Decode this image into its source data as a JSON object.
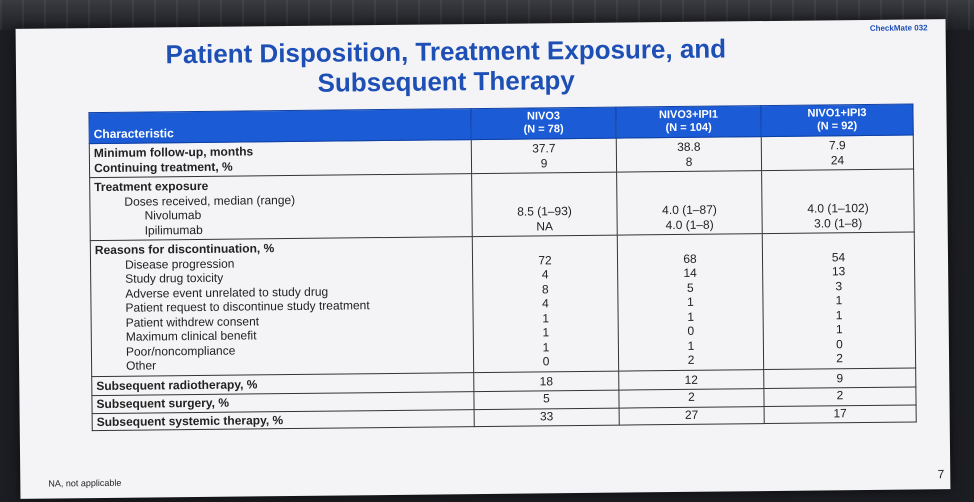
{
  "tag": "CheckMate 032",
  "title": "Patient Disposition, Treatment Exposure, and Subsequent Therapy",
  "header": {
    "characteristic": "Characteristic",
    "col1": "NIVO3",
    "col1_n": "(N = 78)",
    "col2": "NIVO3+IPI1",
    "col2_n": "(N = 104)",
    "col3": "NIVO1+IPI3",
    "col3_n": "(N = 92)"
  },
  "followup": {
    "min_label": "Minimum follow-up, months",
    "min": [
      "37.7",
      "38.8",
      "7.9"
    ],
    "cont_label": "Continuing treatment, %",
    "cont": [
      "9",
      "8",
      "24"
    ]
  },
  "exposure": {
    "heading": "Treatment exposure",
    "sub": "Doses received, median (range)",
    "nivo_label": "Nivolumab",
    "ipi_label": "Ipilimumab",
    "nivo": [
      "8.5 (1–93)",
      "4.0 (1–87)",
      "4.0 (1–102)"
    ],
    "ipi": [
      "NA",
      "4.0 (1–8)",
      "3.0 (1–8)"
    ]
  },
  "reasons": {
    "heading": "Reasons for discontinuation, %",
    "labels": [
      "Disease progression",
      "Study drug toxicity",
      "Adverse event unrelated to study drug",
      "Patient request to discontinue study treatment",
      "Patient withdrew consent",
      "Maximum clinical benefit",
      "Poor/noncompliance",
      "Other"
    ],
    "col1": [
      "72",
      "4",
      "8",
      "4",
      "1",
      "1",
      "1",
      "0"
    ],
    "col2": [
      "68",
      "14",
      "5",
      "1",
      "1",
      "0",
      "1",
      "2"
    ],
    "col3": [
      "54",
      "13",
      "3",
      "1",
      "1",
      "1",
      "0",
      "2"
    ]
  },
  "subsequent": {
    "radio_label": "Subsequent radiotherapy, %",
    "radio": [
      "18",
      "12",
      "9"
    ],
    "surgery_label": "Subsequent surgery, %",
    "surgery": [
      "5",
      "2",
      "2"
    ],
    "systemic_label": "Subsequent systemic therapy, %",
    "systemic": [
      "33",
      "27",
      "17"
    ]
  },
  "footnote": "NA, not applicable",
  "page_number": "7",
  "colors": {
    "header_blue": "#1b5bd6",
    "title_blue": "#1e4fb5"
  }
}
